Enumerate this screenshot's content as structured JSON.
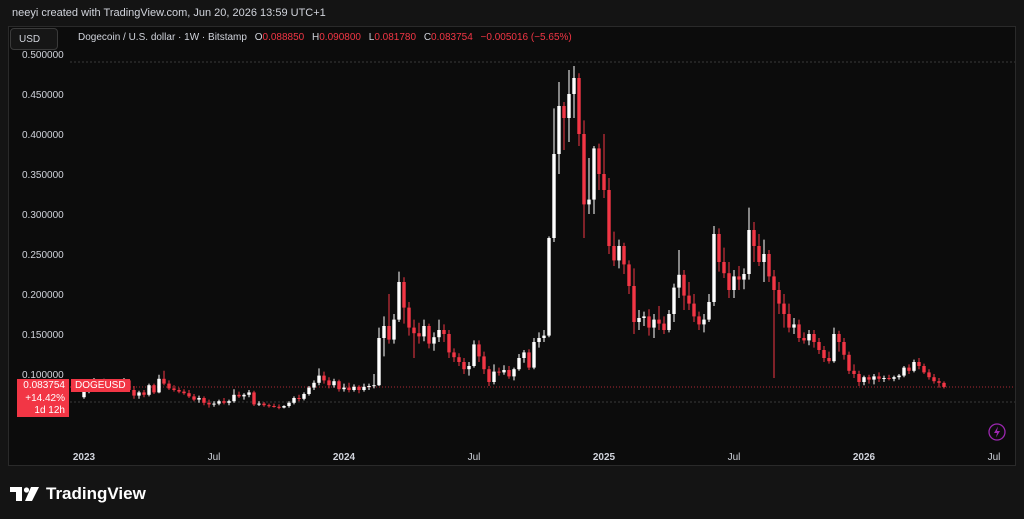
{
  "header": {
    "attribution": "neeyi created with TradingView.com, Jun 20, 2026 13:59 UTC+1"
  },
  "currency_button": "USD",
  "legend": {
    "symbol": "Dogecoin / U.S. dollar · 1W · Bitstamp",
    "open_label": "O",
    "open": "0.088850",
    "high_label": "H",
    "high": "0.090800",
    "low_label": "L",
    "low": "0.081780",
    "close_label": "C",
    "close": "0.083754",
    "change": "−0.005016 (−5.65%)"
  },
  "price_badge": {
    "price": "0.083754",
    "change_pct": "+14.42%",
    "countdown": "1d 12h",
    "symbol": "DOGEUSD"
  },
  "footer": {
    "brand": "TradingView"
  },
  "colors": {
    "up": "#ffffff",
    "down": "#f23645",
    "background": "#0c0c0c",
    "text": "#d1d4dc"
  },
  "chart_data": {
    "type": "candlestick",
    "symbol": "DOGEUSD",
    "interval": "1W",
    "ylim": [
      0.02,
      0.5
    ],
    "yticks": [
      "0.500000",
      "0.450000",
      "0.400000",
      "0.350000",
      "0.300000",
      "0.250000",
      "0.200000",
      "0.150000",
      "0.100000"
    ],
    "xticks": [
      {
        "label": "2023",
        "index": 0,
        "bold": true
      },
      {
        "label": "Jul",
        "index": 26,
        "bold": false
      },
      {
        "label": "2024",
        "index": 52,
        "bold": true
      },
      {
        "label": "Jul",
        "index": 78,
        "bold": false
      },
      {
        "label": "2025",
        "index": 104,
        "bold": true
      },
      {
        "label": "Jul",
        "index": 130,
        "bold": false
      },
      {
        "label": "2026",
        "index": 156,
        "bold": true
      },
      {
        "label": "Jul",
        "index": 182,
        "bold": false
      }
    ],
    "ohlc": [
      [
        0.071,
        0.082,
        0.069,
        0.08
      ],
      [
        0.08,
        0.086,
        0.076,
        0.084
      ],
      [
        0.084,
        0.095,
        0.082,
        0.089
      ],
      [
        0.089,
        0.092,
        0.083,
        0.085
      ],
      [
        0.085,
        0.094,
        0.084,
        0.091
      ],
      [
        0.091,
        0.093,
        0.08,
        0.082
      ],
      [
        0.082,
        0.086,
        0.078,
        0.084
      ],
      [
        0.084,
        0.09,
        0.08,
        0.087
      ],
      [
        0.087,
        0.095,
        0.085,
        0.092
      ],
      [
        0.092,
        0.093,
        0.078,
        0.08
      ],
      [
        0.08,
        0.085,
        0.069,
        0.073
      ],
      [
        0.073,
        0.079,
        0.069,
        0.077
      ],
      [
        0.077,
        0.08,
        0.071,
        0.074
      ],
      [
        0.074,
        0.088,
        0.072,
        0.086
      ],
      [
        0.086,
        0.088,
        0.075,
        0.077
      ],
      [
        0.077,
        0.099,
        0.076,
        0.094
      ],
      [
        0.094,
        0.104,
        0.086,
        0.088
      ],
      [
        0.088,
        0.092,
        0.08,
        0.082
      ],
      [
        0.082,
        0.086,
        0.078,
        0.08
      ],
      [
        0.08,
        0.083,
        0.076,
        0.078
      ],
      [
        0.078,
        0.081,
        0.074,
        0.076
      ],
      [
        0.076,
        0.08,
        0.07,
        0.072
      ],
      [
        0.072,
        0.075,
        0.066,
        0.068
      ],
      [
        0.068,
        0.073,
        0.064,
        0.07
      ],
      [
        0.07,
        0.072,
        0.061,
        0.064
      ],
      [
        0.064,
        0.068,
        0.058,
        0.062
      ],
      [
        0.062,
        0.066,
        0.059,
        0.063
      ],
      [
        0.063,
        0.068,
        0.061,
        0.066
      ],
      [
        0.066,
        0.07,
        0.062,
        0.064
      ],
      [
        0.064,
        0.068,
        0.061,
        0.066
      ],
      [
        0.066,
        0.081,
        0.064,
        0.074
      ],
      [
        0.074,
        0.078,
        0.07,
        0.072
      ],
      [
        0.072,
        0.076,
        0.068,
        0.074
      ],
      [
        0.074,
        0.08,
        0.071,
        0.077
      ],
      [
        0.077,
        0.079,
        0.06,
        0.062
      ],
      [
        0.062,
        0.066,
        0.06,
        0.063
      ],
      [
        0.063,
        0.065,
        0.059,
        0.061
      ],
      [
        0.061,
        0.063,
        0.058,
        0.06
      ],
      [
        0.06,
        0.063,
        0.058,
        0.059
      ],
      [
        0.059,
        0.062,
        0.056,
        0.058
      ],
      [
        0.058,
        0.061,
        0.057,
        0.06
      ],
      [
        0.06,
        0.066,
        0.058,
        0.064
      ],
      [
        0.064,
        0.072,
        0.062,
        0.07
      ],
      [
        0.07,
        0.074,
        0.066,
        0.069
      ],
      [
        0.069,
        0.077,
        0.067,
        0.075
      ],
      [
        0.075,
        0.085,
        0.073,
        0.083
      ],
      [
        0.083,
        0.092,
        0.08,
        0.089
      ],
      [
        0.089,
        0.107,
        0.086,
        0.098
      ],
      [
        0.098,
        0.103,
        0.088,
        0.092
      ],
      [
        0.092,
        0.096,
        0.082,
        0.086
      ],
      [
        0.086,
        0.094,
        0.083,
        0.091
      ],
      [
        0.091,
        0.093,
        0.078,
        0.081
      ],
      [
        0.081,
        0.088,
        0.078,
        0.083
      ],
      [
        0.083,
        0.089,
        0.077,
        0.08
      ],
      [
        0.08,
        0.087,
        0.078,
        0.084
      ],
      [
        0.084,
        0.086,
        0.076,
        0.08
      ],
      [
        0.08,
        0.088,
        0.078,
        0.084
      ],
      [
        0.084,
        0.088,
        0.08,
        0.085
      ],
      [
        0.085,
        0.1,
        0.082,
        0.086
      ],
      [
        0.086,
        0.158,
        0.085,
        0.145
      ],
      [
        0.145,
        0.172,
        0.122,
        0.16
      ],
      [
        0.16,
        0.2,
        0.138,
        0.143
      ],
      [
        0.143,
        0.175,
        0.138,
        0.168
      ],
      [
        0.168,
        0.228,
        0.165,
        0.215
      ],
      [
        0.215,
        0.221,
        0.163,
        0.183
      ],
      [
        0.183,
        0.19,
        0.148,
        0.158
      ],
      [
        0.158,
        0.168,
        0.12,
        0.151
      ],
      [
        0.151,
        0.164,
        0.138,
        0.147
      ],
      [
        0.147,
        0.168,
        0.141,
        0.16
      ],
      [
        0.16,
        0.163,
        0.132,
        0.138
      ],
      [
        0.138,
        0.152,
        0.129,
        0.146
      ],
      [
        0.146,
        0.168,
        0.14,
        0.155
      ],
      [
        0.155,
        0.162,
        0.14,
        0.15
      ],
      [
        0.15,
        0.155,
        0.12,
        0.127
      ],
      [
        0.127,
        0.132,
        0.115,
        0.121
      ],
      [
        0.121,
        0.126,
        0.11,
        0.115
      ],
      [
        0.115,
        0.12,
        0.1,
        0.106
      ],
      [
        0.106,
        0.115,
        0.098,
        0.11
      ],
      [
        0.11,
        0.142,
        0.108,
        0.137
      ],
      [
        0.137,
        0.142,
        0.115,
        0.122
      ],
      [
        0.122,
        0.128,
        0.1,
        0.106
      ],
      [
        0.106,
        0.11,
        0.085,
        0.09
      ],
      [
        0.09,
        0.112,
        0.087,
        0.103
      ],
      [
        0.103,
        0.108,
        0.098,
        0.102
      ],
      [
        0.102,
        0.111,
        0.099,
        0.105
      ],
      [
        0.105,
        0.11,
        0.094,
        0.097
      ],
      [
        0.097,
        0.108,
        0.092,
        0.106
      ],
      [
        0.106,
        0.125,
        0.104,
        0.12
      ],
      [
        0.12,
        0.13,
        0.114,
        0.127
      ],
      [
        0.127,
        0.131,
        0.105,
        0.108
      ],
      [
        0.108,
        0.145,
        0.106,
        0.14
      ],
      [
        0.14,
        0.152,
        0.133,
        0.145
      ],
      [
        0.145,
        0.155,
        0.14,
        0.148
      ],
      [
        0.148,
        0.272,
        0.146,
        0.27
      ],
      [
        0.27,
        0.432,
        0.265,
        0.375
      ],
      [
        0.375,
        0.465,
        0.35,
        0.435
      ],
      [
        0.435,
        0.44,
        0.38,
        0.42
      ],
      [
        0.42,
        0.48,
        0.39,
        0.45
      ],
      [
        0.45,
        0.485,
        0.42,
        0.47
      ],
      [
        0.47,
        0.476,
        0.385,
        0.4
      ],
      [
        0.4,
        0.417,
        0.27,
        0.312
      ],
      [
        0.312,
        0.37,
        0.3,
        0.318
      ],
      [
        0.318,
        0.385,
        0.3,
        0.382
      ],
      [
        0.382,
        0.388,
        0.33,
        0.35
      ],
      [
        0.35,
        0.4,
        0.32,
        0.33
      ],
      [
        0.33,
        0.345,
        0.25,
        0.26
      ],
      [
        0.26,
        0.278,
        0.235,
        0.242
      ],
      [
        0.242,
        0.268,
        0.232,
        0.26
      ],
      [
        0.26,
        0.264,
        0.225,
        0.237
      ],
      [
        0.237,
        0.242,
        0.2,
        0.21
      ],
      [
        0.21,
        0.232,
        0.15,
        0.165
      ],
      [
        0.165,
        0.18,
        0.155,
        0.17
      ],
      [
        0.17,
        0.178,
        0.16,
        0.172
      ],
      [
        0.172,
        0.181,
        0.148,
        0.158
      ],
      [
        0.158,
        0.175,
        0.145,
        0.168
      ],
      [
        0.168,
        0.185,
        0.155,
        0.163
      ],
      [
        0.163,
        0.172,
        0.15,
        0.155
      ],
      [
        0.155,
        0.18,
        0.152,
        0.175
      ],
      [
        0.175,
        0.213,
        0.165,
        0.208
      ],
      [
        0.208,
        0.255,
        0.195,
        0.224
      ],
      [
        0.224,
        0.23,
        0.18,
        0.198
      ],
      [
        0.198,
        0.215,
        0.18,
        0.188
      ],
      [
        0.188,
        0.2,
        0.165,
        0.172
      ],
      [
        0.172,
        0.178,
        0.155,
        0.162
      ],
      [
        0.162,
        0.175,
        0.152,
        0.168
      ],
      [
        0.168,
        0.2,
        0.165,
        0.19
      ],
      [
        0.19,
        0.285,
        0.185,
        0.275
      ],
      [
        0.275,
        0.282,
        0.228,
        0.24
      ],
      [
        0.24,
        0.258,
        0.22,
        0.226
      ],
      [
        0.226,
        0.24,
        0.195,
        0.205
      ],
      [
        0.205,
        0.23,
        0.195,
        0.222
      ],
      [
        0.222,
        0.235,
        0.205,
        0.218
      ],
      [
        0.218,
        0.232,
        0.206,
        0.225
      ],
      [
        0.225,
        0.308,
        0.218,
        0.28
      ],
      [
        0.28,
        0.29,
        0.24,
        0.26
      ],
      [
        0.26,
        0.275,
        0.235,
        0.24
      ],
      [
        0.24,
        0.268,
        0.215,
        0.25
      ],
      [
        0.25,
        0.255,
        0.215,
        0.222
      ],
      [
        0.222,
        0.23,
        0.095,
        0.205
      ],
      [
        0.205,
        0.215,
        0.175,
        0.188
      ],
      [
        0.188,
        0.2,
        0.158,
        0.175
      ],
      [
        0.175,
        0.188,
        0.152,
        0.158
      ],
      [
        0.158,
        0.17,
        0.15,
        0.162
      ],
      [
        0.162,
        0.168,
        0.14,
        0.145
      ],
      [
        0.145,
        0.152,
        0.138,
        0.142
      ],
      [
        0.142,
        0.155,
        0.136,
        0.15
      ],
      [
        0.15,
        0.155,
        0.133,
        0.14
      ],
      [
        0.14,
        0.145,
        0.125,
        0.13
      ],
      [
        0.13,
        0.135,
        0.115,
        0.12
      ],
      [
        0.12,
        0.128,
        0.113,
        0.116
      ],
      [
        0.116,
        0.158,
        0.114,
        0.15
      ],
      [
        0.15,
        0.154,
        0.128,
        0.14
      ],
      [
        0.14,
        0.145,
        0.118,
        0.124
      ],
      [
        0.124,
        0.128,
        0.1,
        0.104
      ],
      [
        0.104,
        0.112,
        0.095,
        0.1
      ],
      [
        0.1,
        0.104,
        0.085,
        0.09
      ],
      [
        0.09,
        0.098,
        0.086,
        0.096
      ],
      [
        0.096,
        0.099,
        0.088,
        0.093
      ],
      [
        0.093,
        0.1,
        0.087,
        0.097
      ],
      [
        0.097,
        0.102,
        0.09,
        0.094
      ],
      [
        0.094,
        0.098,
        0.09,
        0.095
      ],
      [
        0.095,
        0.099,
        0.092,
        0.094
      ],
      [
        0.094,
        0.098,
        0.091,
        0.096
      ],
      [
        0.096,
        0.1,
        0.093,
        0.098
      ],
      [
        0.098,
        0.11,
        0.096,
        0.108
      ],
      [
        0.108,
        0.112,
        0.1,
        0.104
      ],
      [
        0.104,
        0.118,
        0.102,
        0.115
      ],
      [
        0.115,
        0.12,
        0.106,
        0.11
      ],
      [
        0.11,
        0.113,
        0.1,
        0.102
      ],
      [
        0.102,
        0.106,
        0.093,
        0.096
      ],
      [
        0.096,
        0.1,
        0.088,
        0.091
      ],
      [
        0.091,
        0.095,
        0.083,
        0.089
      ],
      [
        0.0889,
        0.0908,
        0.0818,
        0.0838
      ]
    ],
    "last_price": 0.083754,
    "support_line": 0.065,
    "top_line": 0.49
  }
}
